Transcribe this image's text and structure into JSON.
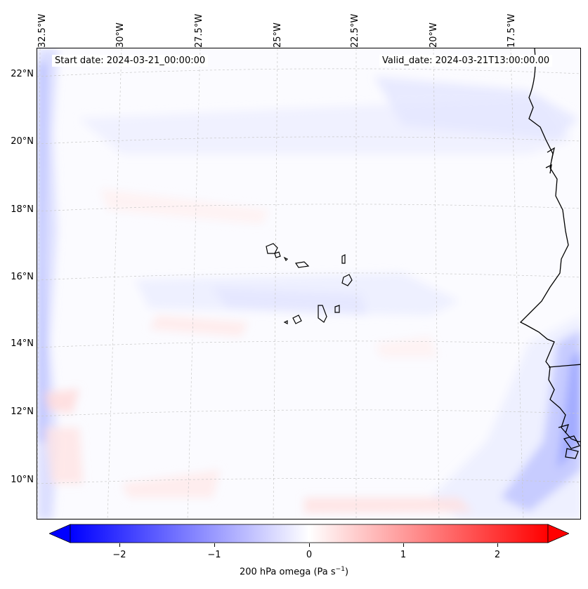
{
  "map": {
    "longitude_labels": [
      "32.5°W",
      "30°W",
      "27.5°W",
      "25°W",
      "22.5°W",
      "20°W",
      "17.5°W"
    ],
    "latitude_labels": [
      "22°N",
      "20°N",
      "18°N",
      "16°N",
      "14°N",
      "12°N",
      "10°N"
    ],
    "start_date": "Start date: 2024-03-21_00:00:00",
    "valid_date": "Valid_date: 2024-03-21T13:00:00.00",
    "features": [
      "coastline",
      "cape-verde-islands",
      "graticule",
      "omega-contour-field"
    ]
  },
  "colorbar": {
    "ticks": [
      "−2",
      "−1",
      "0",
      "1",
      "2"
    ],
    "tick_values": [
      -2,
      -1,
      0,
      1,
      2
    ],
    "range": [
      -2.5,
      2.5
    ],
    "label_prefix": "200 hPa omega (Pa s",
    "label_exp": "−1",
    "label_suffix": ")",
    "colormap": "bwr",
    "extend": "both",
    "negative_color": "#0000ff",
    "neutral_color": "#ffffff",
    "positive_color": "#ff0000"
  }
}
